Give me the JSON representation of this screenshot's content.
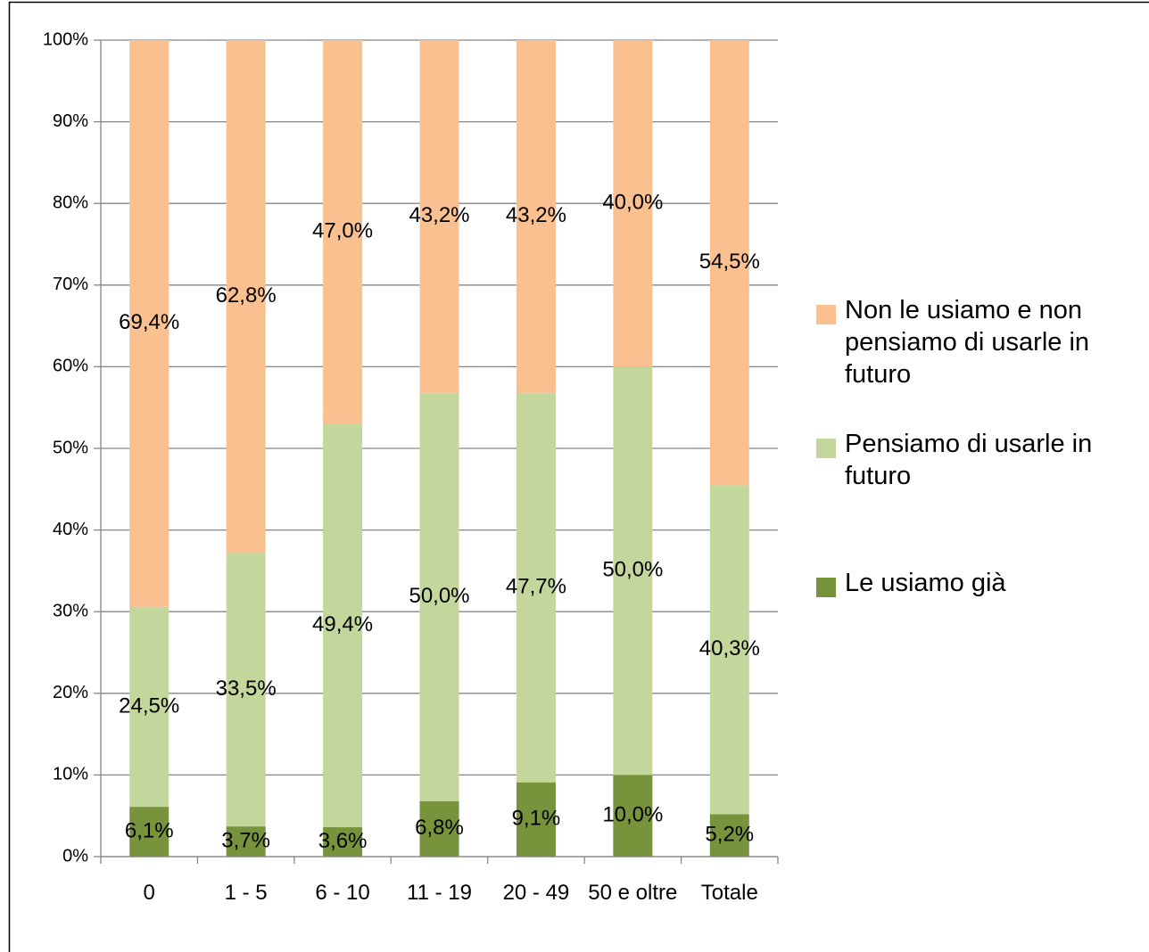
{
  "chart_data": {
    "type": "stacked_bar",
    "categories": [
      "0",
      "1 - 5",
      "6 - 10",
      "11 - 19",
      "20 - 49",
      "50 e oltre",
      "Totale"
    ],
    "series": [
      {
        "name": "Le usiamo già",
        "color": "#77933c",
        "values": [
          6.1,
          3.7,
          3.6,
          6.8,
          9.1,
          10.0,
          5.2
        ],
        "value_labels": [
          "6,1%",
          "3,7%",
          "3,6%",
          "6,8%",
          "9,1%",
          "10,0%",
          "5,2%"
        ]
      },
      {
        "name": "Pensiamo di usarle in futuro",
        "color": "#c3d69b",
        "values": [
          24.5,
          33.5,
          49.4,
          50.0,
          47.7,
          50.0,
          40.3
        ],
        "value_labels": [
          "24,5%",
          "33,5%",
          "49,4%",
          "50,0%",
          "47,7%",
          "50,0%",
          "40,3%"
        ]
      },
      {
        "name": "Non le usiamo e non pensiamo di usarle in futuro",
        "color": "#fac090",
        "values": [
          69.4,
          62.8,
          47.0,
          43.2,
          43.2,
          40.0,
          54.5
        ],
        "value_labels": [
          "69,4%",
          "62,8%",
          "47,0%",
          "43,2%",
          "43,2%",
          "40,0%",
          "54,5%"
        ]
      }
    ],
    "ylim": [
      0,
      100
    ],
    "yticks": [
      {
        "value": 0,
        "label": "0%"
      },
      {
        "value": 10,
        "label": "10%"
      },
      {
        "value": 20,
        "label": "20%"
      },
      {
        "value": 30,
        "label": "30%"
      },
      {
        "value": 40,
        "label": "40%"
      },
      {
        "value": 50,
        "label": "50%"
      },
      {
        "value": 60,
        "label": "60%"
      },
      {
        "value": 70,
        "label": "70%"
      },
      {
        "value": 80,
        "label": "80%"
      },
      {
        "value": 90,
        "label": "90%"
      },
      {
        "value": 100,
        "label": "100%"
      }
    ],
    "grid": true,
    "legend": "right"
  }
}
